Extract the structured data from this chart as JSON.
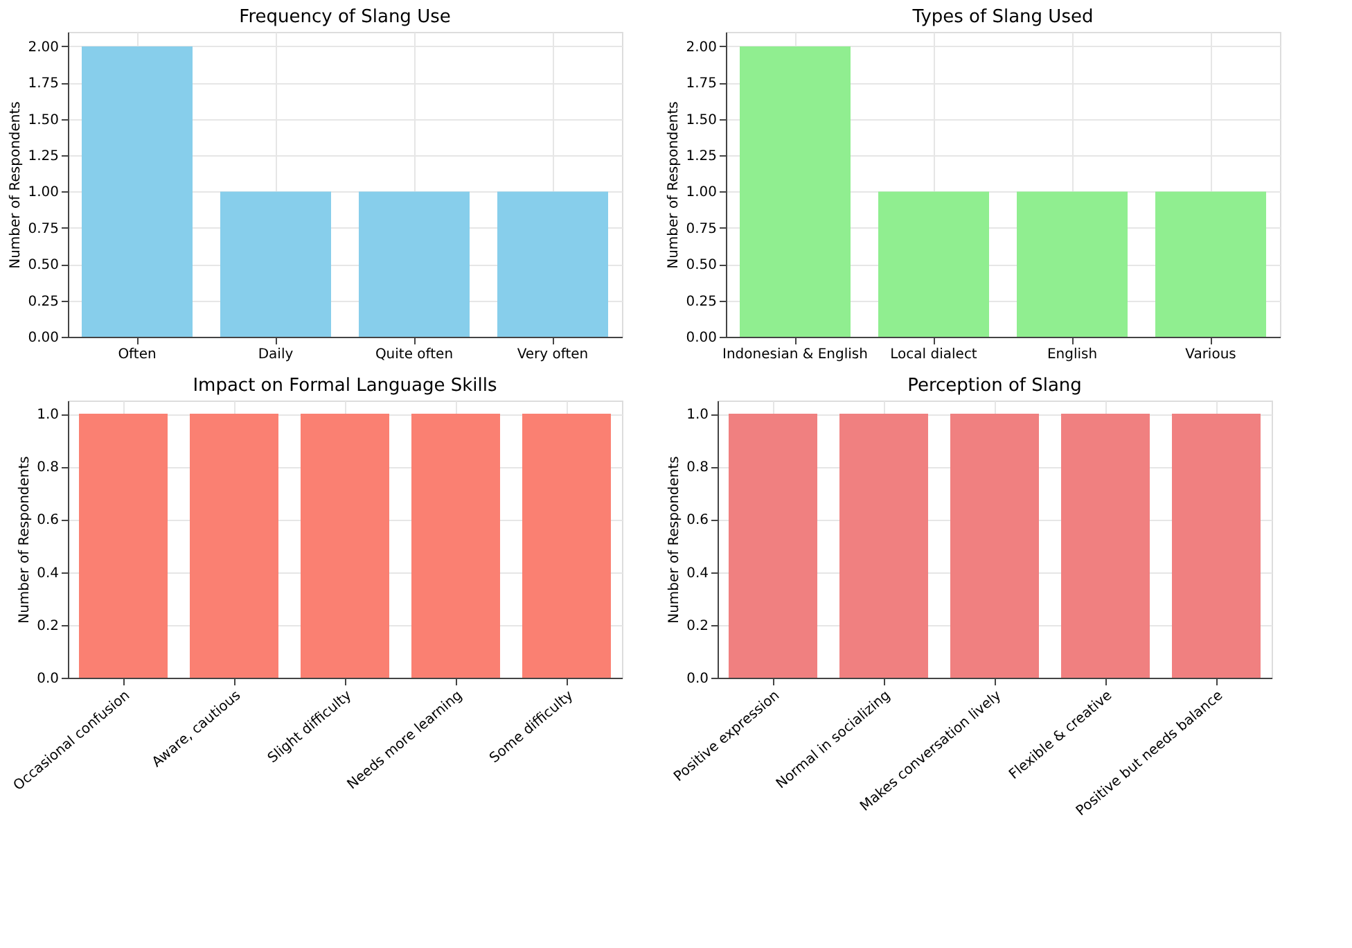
{
  "chart_data": [
    {
      "type": "bar",
      "title": "Frequency of Slang Use",
      "ylabel": "Number of Respondents",
      "categories": [
        "Often",
        "Daily",
        "Quite often",
        "Very often"
      ],
      "values": [
        2,
        1,
        1,
        1
      ],
      "color": "#87ceeb",
      "ylim": [
        0,
        2.1
      ],
      "yticks": [
        {
          "value": 0,
          "label": "0.00"
        },
        {
          "value": 0.25,
          "label": "0.25"
        },
        {
          "value": 0.5,
          "label": "0.50"
        },
        {
          "value": 0.75,
          "label": "0.75"
        },
        {
          "value": 1,
          "label": "1.00"
        },
        {
          "value": 1.25,
          "label": "1.25"
        },
        {
          "value": 1.5,
          "label": "1.50"
        },
        {
          "value": 1.75,
          "label": "1.75"
        },
        {
          "value": 2,
          "label": "2.00"
        }
      ],
      "grid": true
    },
    {
      "type": "bar",
      "title": "Types of Slang Used",
      "ylabel": "Number of Respondents",
      "categories": [
        "Indonesian & English",
        "Local dialect",
        "English",
        "Various"
      ],
      "values": [
        2,
        1,
        1,
        1
      ],
      "color": "#90ee90",
      "ylim": [
        0,
        2.1
      ],
      "yticks": [
        {
          "value": 0,
          "label": "0.00"
        },
        {
          "value": 0.25,
          "label": "0.25"
        },
        {
          "value": 0.5,
          "label": "0.50"
        },
        {
          "value": 0.75,
          "label": "0.75"
        },
        {
          "value": 1,
          "label": "1.00"
        },
        {
          "value": 1.25,
          "label": "1.25"
        },
        {
          "value": 1.5,
          "label": "1.50"
        },
        {
          "value": 1.75,
          "label": "1.75"
        },
        {
          "value": 2,
          "label": "2.00"
        }
      ],
      "grid": true
    },
    {
      "type": "bar",
      "title": "Impact on Formal Language Skills",
      "ylabel": "Number of Respondents",
      "categories": [
        "Occasional confusion",
        "Aware, cautious",
        "Slight difficulty",
        "Needs more learning",
        "Some difficulty"
      ],
      "values": [
        1,
        1,
        1,
        1,
        1
      ],
      "color": "#fa8072",
      "ylim": [
        0,
        1.05
      ],
      "yticks": [
        {
          "value": 0,
          "label": "0.0"
        },
        {
          "value": 0.2,
          "label": "0.2"
        },
        {
          "value": 0.4,
          "label": "0.4"
        },
        {
          "value": 0.6,
          "label": "0.6"
        },
        {
          "value": 0.8,
          "label": "0.8"
        },
        {
          "value": 1,
          "label": "1.0"
        }
      ],
      "grid": true
    },
    {
      "type": "bar",
      "title": "Perception of Slang",
      "ylabel": "Number of Respondents",
      "categories": [
        "Positive expression",
        "Normal in socializing",
        "Makes conversation lively",
        "Flexible & creative",
        "Positive but needs balance"
      ],
      "values": [
        1,
        1,
        1,
        1,
        1
      ],
      "color": "#f08080",
      "ylim": [
        0,
        1.05
      ],
      "yticks": [
        {
          "value": 0,
          "label": "0.0"
        },
        {
          "value": 0.2,
          "label": "0.2"
        },
        {
          "value": 0.4,
          "label": "0.4"
        },
        {
          "value": 0.6,
          "label": "0.6"
        },
        {
          "value": 0.8,
          "label": "0.8"
        },
        {
          "value": 1,
          "label": "1.0"
        }
      ],
      "grid": true
    }
  ]
}
